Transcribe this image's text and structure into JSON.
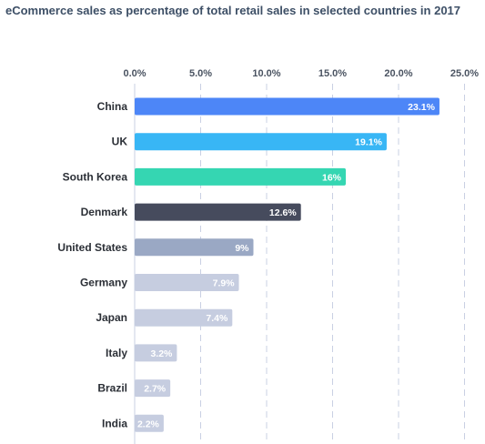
{
  "chart_data": {
    "type": "bar",
    "orientation": "horizontal",
    "title": "eCommerce sales as percentage of total retail sales in selected countries in 2017",
    "categories": [
      "China",
      "UK",
      "South Korea",
      "Denmark",
      "United States",
      "Germany",
      "Japan",
      "Italy",
      "Brazil",
      "India"
    ],
    "values": [
      23.1,
      19.1,
      16,
      12.6,
      9,
      7.9,
      7.4,
      3.2,
      2.7,
      2.2
    ],
    "data_labels": [
      "23.1%",
      "19.1%",
      "16%",
      "12.6%",
      "9%",
      "7.9%",
      "7.4%",
      "3.2%",
      "2.7%",
      "2.2%"
    ],
    "bar_colors": [
      "#4d86f7",
      "#38b6f5",
      "#35d6b2",
      "#464b5d",
      "#9aa8c4",
      "#c6cde0",
      "#c6cde0",
      "#c6cde0",
      "#c6cde0",
      "#c6cde0"
    ],
    "x_ticks": [
      "0.0%",
      "5.0%",
      "10.0%",
      "15.0%",
      "20.0%",
      "25.0%"
    ],
    "x_tick_values": [
      0,
      5,
      10,
      15,
      20,
      25
    ],
    "xlim": [
      0,
      25
    ],
    "axis_position": "top",
    "grid": true,
    "grid_color": "#c9d0e3",
    "xlabel": "",
    "ylabel": ""
  }
}
